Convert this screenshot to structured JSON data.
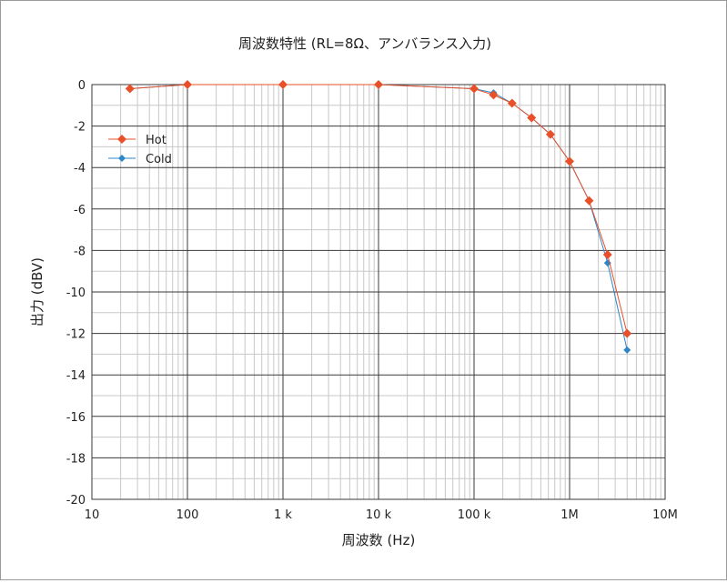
{
  "chart_data": {
    "type": "line",
    "title": "周波数特性 (RL=8Ω、アンバランス入力)",
    "xlabel": "周波数 (Hz)",
    "ylabel": "出力 (dBV)",
    "x_scale": "log",
    "xlim": [
      10,
      10000000
    ],
    "ylim": [
      -20,
      0
    ],
    "x_ticks": [
      10,
      100,
      1000,
      10000,
      100000,
      1000000,
      10000000
    ],
    "x_tick_labels": [
      "10",
      "100",
      "1 k",
      "10 k",
      "100 k",
      "1M",
      "10M"
    ],
    "y_ticks": [
      0,
      -2,
      -4,
      -6,
      -8,
      -10,
      -12,
      -14,
      -16,
      -18,
      -20
    ],
    "y_tick_labels": [
      "0",
      "-2",
      "-4",
      "-6",
      "-8",
      "-10",
      "-12",
      "-14",
      "-16",
      "-18",
      "-20"
    ],
    "grid": true,
    "legend_position": "top-left",
    "series": [
      {
        "name": "Hot",
        "color": "#e8502a",
        "marker": "diamond",
        "points": [
          [
            25,
            -0.2
          ],
          [
            100,
            0
          ],
          [
            1000,
            0
          ],
          [
            10000,
            0
          ],
          [
            100000,
            -0.2
          ],
          [
            160000,
            -0.5
          ],
          [
            250000,
            -0.9
          ],
          [
            400000,
            -1.6
          ],
          [
            630000,
            -2.4
          ],
          [
            1000000,
            -3.7
          ],
          [
            1600000,
            -5.6
          ],
          [
            2500000,
            -8.2
          ],
          [
            4000000,
            -12.0
          ]
        ]
      },
      {
        "name": "Cold",
        "color": "#2e86c8",
        "marker": "diamond",
        "points": [
          [
            25,
            -0.2
          ],
          [
            100,
            0
          ],
          [
            1000,
            0
          ],
          [
            10000,
            0
          ],
          [
            100000,
            -0.2
          ],
          [
            160000,
            -0.4
          ],
          [
            250000,
            -0.9
          ],
          [
            400000,
            -1.6
          ],
          [
            630000,
            -2.4
          ],
          [
            1000000,
            -3.7
          ],
          [
            1600000,
            -5.6
          ],
          [
            2500000,
            -8.6
          ],
          [
            4000000,
            -12.8
          ]
        ]
      }
    ]
  }
}
